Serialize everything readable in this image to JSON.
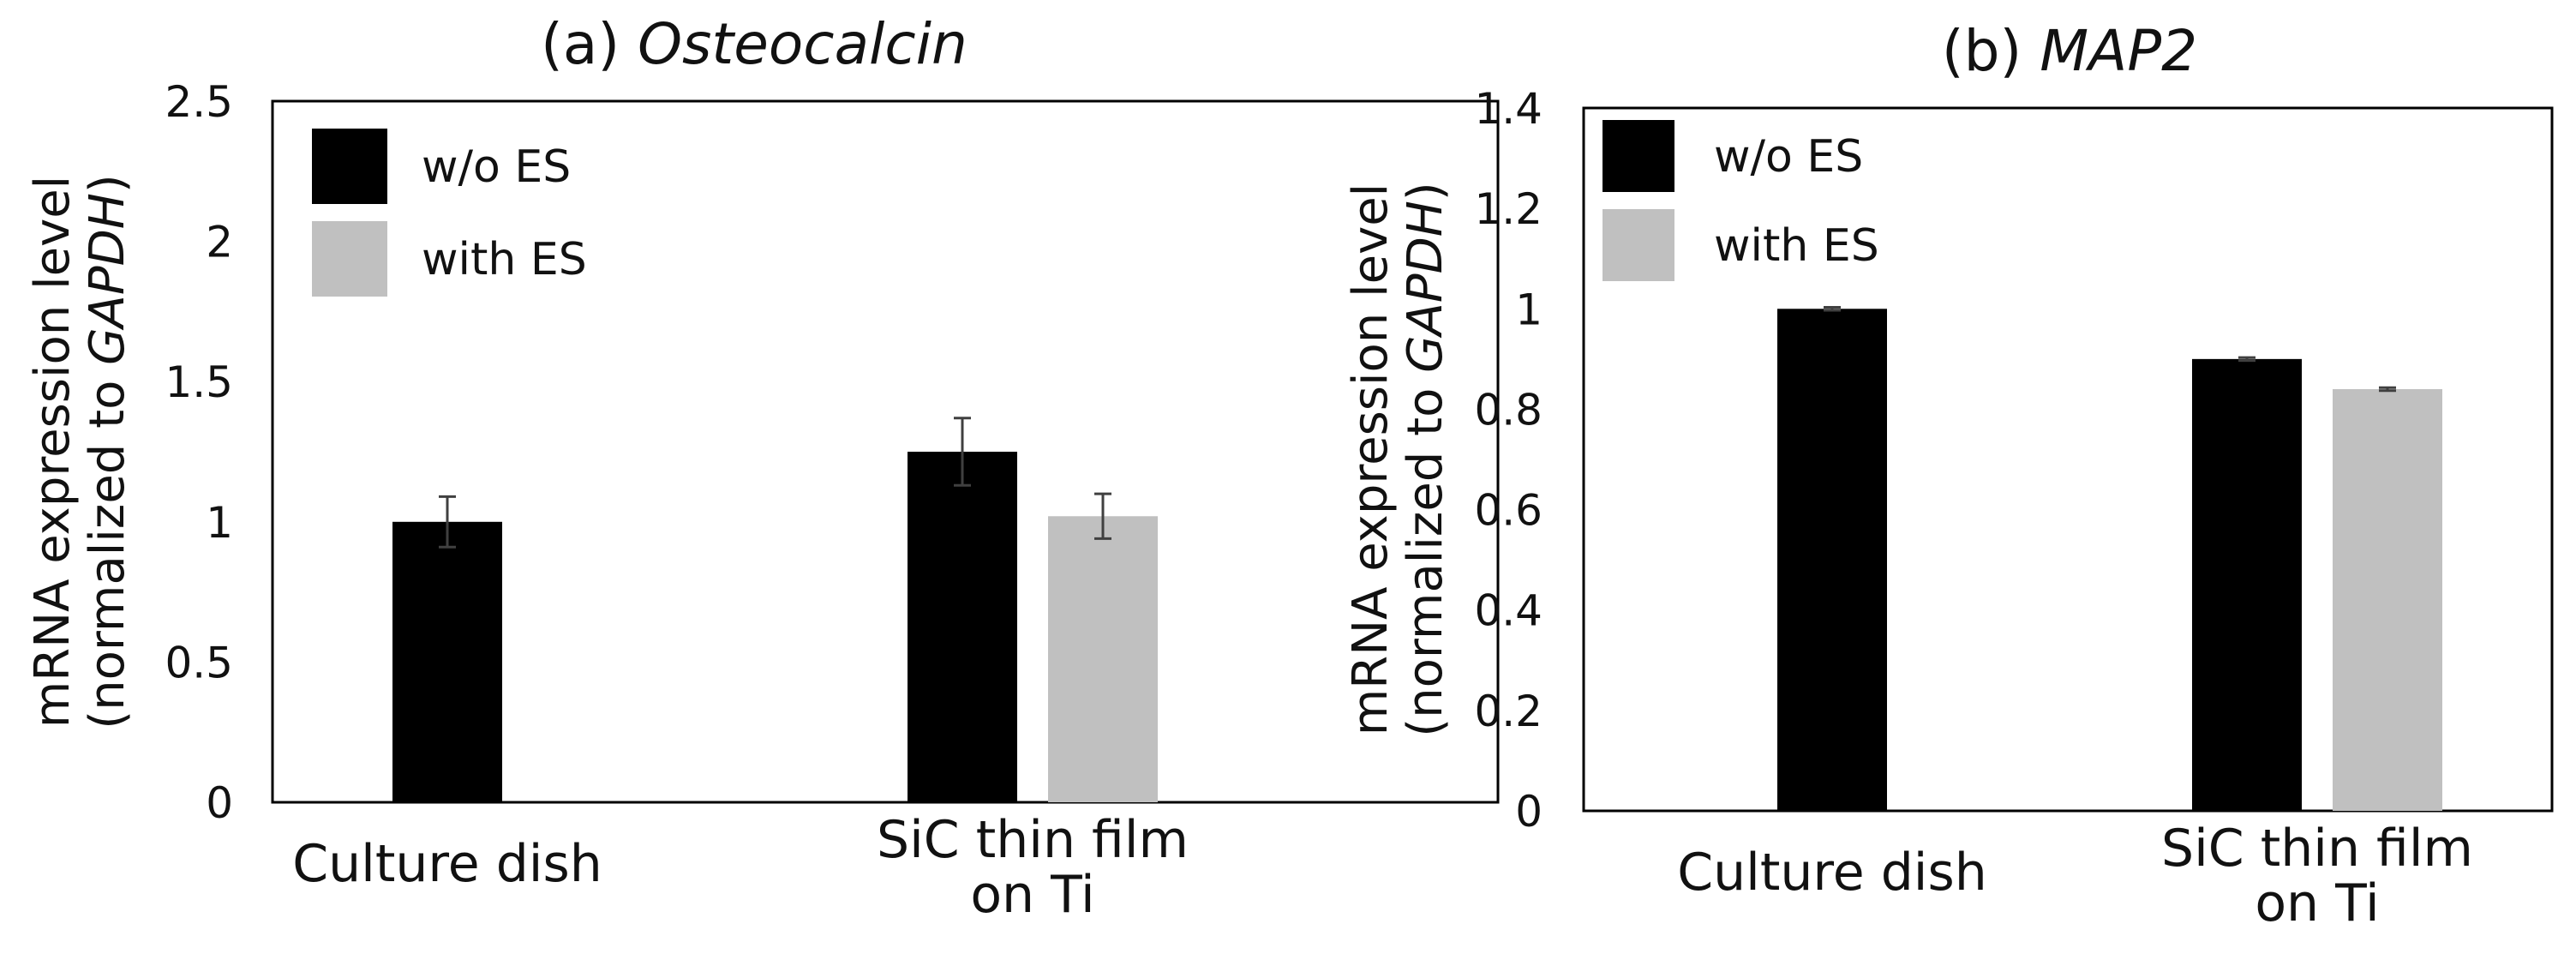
{
  "colors": {
    "without_es": "#000000",
    "with_es": "#c0c0c0",
    "axis": "#000000",
    "error_bar": "#404040"
  },
  "chart_data": [
    {
      "type": "bar",
      "panel": "(a)",
      "title_prefix": "(a)",
      "title_gene": "Osteocalcin",
      "ylabel_line1": "mRNA expression level",
      "ylabel_line2_prefix": "(normalized to ",
      "ylabel_line2_gene": "GAPDH",
      "ylabel_line2_suffix": ")",
      "ylim": [
        0,
        2.5
      ],
      "yticks": [
        "0",
        "0.5",
        "1",
        "1.5",
        "2",
        "2.5"
      ],
      "ytick_values": [
        0,
        0.5,
        1,
        1.5,
        2,
        2.5
      ],
      "categories": [
        {
          "lines": [
            "Culture dish"
          ]
        },
        {
          "lines": [
            "SiC thin film",
            "on Ti"
          ]
        }
      ],
      "series": [
        {
          "name": "w/o ES",
          "color_key": "without_es",
          "values": [
            1.0,
            1.25
          ],
          "errors": [
            0.09,
            0.12
          ]
        },
        {
          "name": "with ES",
          "color_key": "with_es",
          "values": [
            null,
            1.02
          ],
          "errors": [
            null,
            0.08
          ]
        }
      ],
      "legend_position": "top-left",
      "grid": false
    },
    {
      "type": "bar",
      "panel": "(b)",
      "title_prefix": "(b)",
      "title_gene": "MAP2",
      "ylabel_line1": "mRNA expression level",
      "ylabel_line2_prefix": "(normalized to ",
      "ylabel_line2_gene": "GAPDH",
      "ylabel_line2_suffix": ")",
      "ylim": [
        0,
        1.4
      ],
      "yticks": [
        "0",
        "0.2",
        "0.4",
        "0.6",
        "0.8",
        "1",
        "1.2",
        "1.4"
      ],
      "ytick_values": [
        0,
        0.2,
        0.4,
        0.6,
        0.8,
        1.0,
        1.2,
        1.4
      ],
      "categories": [
        {
          "lines": [
            "Culture dish"
          ]
        },
        {
          "lines": [
            "SiC thin film",
            "on Ti"
          ]
        }
      ],
      "series": [
        {
          "name": "w/o ES",
          "color_key": "without_es",
          "values": [
            1.0,
            0.9
          ],
          "errors": [
            0.003,
            0.003
          ]
        },
        {
          "name": "with ES",
          "color_key": "with_es",
          "values": [
            null,
            0.84
          ],
          "errors": [
            null,
            0.003
          ]
        }
      ],
      "legend_position": "top-left",
      "grid": false
    }
  ]
}
